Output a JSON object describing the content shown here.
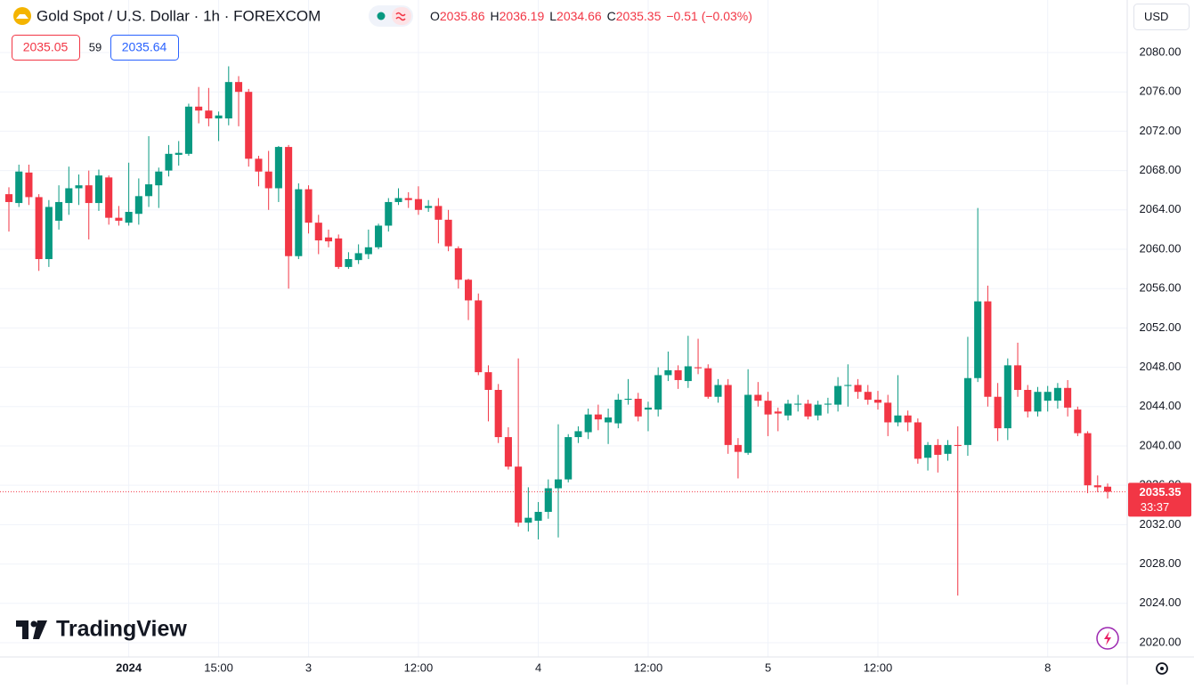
{
  "chart_data": {
    "type": "candlestick",
    "title": "Gold Spot / U.S. Dollar · 1h · FOREXCOM",
    "ohlc_labels": [
      "O",
      "H",
      "L",
      "C"
    ],
    "change": "−0.51 (−0.03%)",
    "bid": 2035.05,
    "spread": 59,
    "ask": 2035.64,
    "currency": "USD",
    "countdown": "33:37",
    "brand": "TradingView",
    "up_color": "#089981",
    "down_color": "#f23645",
    "grid": true,
    "ylim": [
      2018.55,
      2085.34
    ],
    "yticks": [
      {
        "value": 2020,
        "label": "2020.00"
      },
      {
        "value": 2024,
        "label": "2024.00"
      },
      {
        "value": 2028,
        "label": "2028.00"
      },
      {
        "value": 2032,
        "label": "2032.00"
      },
      {
        "value": 2036,
        "label": "2036.00"
      },
      {
        "value": 2040,
        "label": "2040.00"
      },
      {
        "value": 2044,
        "label": "2044.00"
      },
      {
        "value": 2048,
        "label": "2048.00"
      },
      {
        "value": 2052,
        "label": "2052.00"
      },
      {
        "value": 2056,
        "label": "2056.00"
      },
      {
        "value": 2060,
        "label": "2060.00"
      },
      {
        "value": 2064,
        "label": "2064.00"
      },
      {
        "value": 2068,
        "label": "2068.00"
      },
      {
        "value": 2072,
        "label": "2072.00"
      },
      {
        "value": 2076,
        "label": "2076.00"
      },
      {
        "value": 2080,
        "label": "2080.00"
      }
    ],
    "categories": [
      null,
      null,
      null,
      null,
      null,
      null,
      null,
      null,
      null,
      null,
      null,
      null,
      "2024",
      null,
      null,
      null,
      null,
      null,
      null,
      null,
      null,
      "15:00",
      null,
      null,
      null,
      null,
      null,
      null,
      null,
      null,
      "3",
      null,
      null,
      null,
      null,
      null,
      null,
      null,
      null,
      null,
      null,
      "12:00",
      null,
      null,
      null,
      null,
      null,
      null,
      null,
      null,
      null,
      null,
      null,
      "4",
      null,
      null,
      null,
      null,
      null,
      null,
      null,
      null,
      null,
      null,
      "12:00",
      null,
      null,
      null,
      null,
      null,
      null,
      null,
      null,
      null,
      null,
      null,
      "5",
      null,
      null,
      null,
      null,
      null,
      null,
      null,
      null,
      null,
      null,
      "12:00",
      null,
      null,
      null,
      null,
      null,
      null,
      null,
      null,
      null,
      null,
      null,
      null,
      null,
      null,
      null,
      null,
      "8",
      null,
      null,
      null,
      null,
      null,
      null
    ],
    "open": [
      2065.6,
      2064.7,
      2067.8,
      2065.3,
      2059.0,
      2062.9,
      2064.7,
      2066.2,
      2066.5,
      2064.7,
      2067.3,
      2063.2,
      2062.7,
      2063.6,
      2065.4,
      2066.5,
      2068.0,
      2069.6,
      2069.7,
      2074.5,
      2074.1,
      2073.3,
      2073.3,
      2077.0,
      2076.0,
      2069.2,
      2067.9,
      2066.2,
      2070.4,
      2059.3,
      2066.1,
      2062.7,
      2061.2,
      2061.1,
      2058.2,
      2058.9,
      2059.5,
      2060.2,
      2062.4,
      2064.8,
      2065.2,
      2065.1,
      2064.2,
      2064.4,
      2063.0,
      2060.1,
      2056.9,
      2054.8,
      2047.5,
      2045.7,
      2040.9,
      2037.9,
      2032.2,
      2032.4,
      2033.3,
      2035.7,
      2036.6,
      2040.9,
      2041.4,
      2043.2,
      2042.4,
      2042.3,
      2044.7,
      2044.8,
      2043.7,
      2043.7,
      2047.2,
      2047.7,
      2046.6,
      2048.0,
      2047.9,
      2045.0,
      2046.2,
      2040.1,
      2039.3,
      2045.2,
      2044.6,
      2043.5,
      2043.1,
      2044.2,
      2044.3,
      2043.1,
      2044.2,
      2044.2,
      2046.1,
      2046.2,
      2045.5,
      2044.7,
      2044.4,
      2042.4,
      2043.1,
      2042.4,
      2038.8,
      2040.1,
      2039.2,
      2040.1,
      2040.1,
      2046.9,
      2054.7,
      2045.0,
      2041.8,
      2048.2,
      2045.7,
      2043.5,
      2044.6,
      2044.6,
      2045.9,
      2043.7,
      2041.3,
      2036.0,
      2035.86
    ],
    "high": [
      2066.3,
      2068.6,
      2068.6,
      2065.6,
      2065.0,
      2066.5,
      2068.4,
      2067.6,
      2068.0,
      2068.1,
      2067.5,
      2064.4,
      2068.8,
      2067.2,
      2071.5,
      2068.3,
      2070.6,
      2071.0,
      2074.8,
      2076.5,
      2076.4,
      2074.0,
      2078.6,
      2077.6,
      2076.3,
      2069.5,
      2070.0,
      2070.5,
      2070.6,
      2066.7,
      2066.5,
      2063.5,
      2062.0,
      2061.5,
      2059.7,
      2060.5,
      2062.0,
      2062.6,
      2065.2,
      2066.2,
      2065.8,
      2066.4,
      2065.0,
      2065.2,
      2064.0,
      2060.3,
      2057.0,
      2055.5,
      2048.2,
      2046.3,
      2041.9,
      2048.9,
      2035.8,
      2034.3,
      2036.6,
      2042.2,
      2041.2,
      2042.0,
      2043.8,
      2044.2,
      2043.8,
      2045.3,
      2046.8,
      2045.4,
      2044.5,
      2048.0,
      2049.6,
      2048.2,
      2051.2,
      2050.9,
      2048.3,
      2046.8,
      2046.8,
      2040.8,
      2047.8,
      2046.5,
      2045.5,
      2043.9,
      2044.7,
      2045.2,
      2044.7,
      2044.6,
      2044.9,
      2047.0,
      2048.3,
      2046.8,
      2046.2,
      2045.6,
      2045.2,
      2047.2,
      2043.6,
      2042.8,
      2040.4,
      2040.7,
      2040.6,
      2042.0,
      2051.1,
      2064.2,
      2056.3,
      2046.4,
      2048.9,
      2050.5,
      2046.2,
      2046.0,
      2046.1,
      2046.4,
      2046.7,
      2044.0,
      2041.5,
      2037.0,
      2036.19
    ],
    "low": [
      2061.8,
      2064.3,
      2064.5,
      2057.8,
      2058.2,
      2062.0,
      2063.5,
      2064.5,
      2061.0,
      2063.9,
      2062.5,
      2062.4,
      2062.4,
      2062.5,
      2064.3,
      2064.2,
      2067.4,
      2068.5,
      2069.5,
      2072.8,
      2072.5,
      2071.0,
      2072.6,
      2072.5,
      2068.4,
      2066.4,
      2064.0,
      2064.8,
      2056.0,
      2059.0,
      2061.6,
      2059.5,
      2060.2,
      2058.0,
      2058.0,
      2058.5,
      2059.0,
      2060.0,
      2061.8,
      2064.5,
      2064.2,
      2063.5,
      2063.8,
      2060.6,
      2059.8,
      2056.0,
      2052.8,
      2047.2,
      2042.5,
      2040.3,
      2037.6,
      2031.8,
      2031.3,
      2030.5,
      2032.6,
      2030.7,
      2036.3,
      2040.3,
      2040.7,
      2041.6,
      2040.2,
      2041.8,
      2044.2,
      2042.5,
      2041.5,
      2043.0,
      2046.6,
      2045.8,
      2045.9,
      2047.3,
      2044.8,
      2044.4,
      2039.2,
      2036.7,
      2039.1,
      2044.0,
      2041.0,
      2041.5,
      2042.6,
      2043.5,
      2042.7,
      2042.6,
      2043.3,
      2043.5,
      2044.0,
      2044.8,
      2044.2,
      2043.7,
      2041.0,
      2042.0,
      2041.5,
      2038.2,
      2037.5,
      2037.3,
      2038.5,
      2024.8,
      2039.0,
      2046.5,
      2044.0,
      2040.5,
      2040.6,
      2045.0,
      2042.9,
      2043.0,
      2043.5,
      2043.8,
      2043.0,
      2041.0,
      2035.2,
      2035.3,
      2034.66
    ],
    "close": [
      2064.8,
      2067.9,
      2065.3,
      2059.0,
      2064.3,
      2064.8,
      2066.2,
      2066.5,
      2064.7,
      2067.5,
      2063.2,
      2062.9,
      2063.8,
      2065.4,
      2066.6,
      2067.9,
      2069.7,
      2069.8,
      2074.5,
      2074.1,
      2073.3,
      2073.6,
      2077.0,
      2076.0,
      2069.2,
      2067.9,
      2066.2,
      2070.4,
      2059.3,
      2066.1,
      2062.7,
      2060.9,
      2060.8,
      2058.2,
      2059.0,
      2059.6,
      2060.2,
      2062.4,
      2064.8,
      2065.2,
      2065.0,
      2064.0,
      2064.4,
      2063.0,
      2060.3,
      2056.9,
      2054.8,
      2047.5,
      2045.7,
      2040.9,
      2037.9,
      2032.2,
      2032.7,
      2033.3,
      2035.7,
      2036.6,
      2040.9,
      2041.5,
      2043.2,
      2042.7,
      2042.9,
      2044.7,
      2044.8,
      2043.0,
      2043.9,
      2047.2,
      2047.7,
      2046.7,
      2048.1,
      2047.9,
      2045.0,
      2046.2,
      2040.1,
      2039.4,
      2045.2,
      2044.6,
      2043.2,
      2043.3,
      2044.3,
      2044.3,
      2043.0,
      2044.2,
      2044.3,
      2046.1,
      2046.2,
      2045.5,
      2044.7,
      2044.4,
      2042.4,
      2043.1,
      2042.4,
      2038.7,
      2040.1,
      2039.1,
      2040.1,
      2040.0,
      2046.9,
      2054.7,
      2045.0,
      2041.8,
      2048.2,
      2045.7,
      2043.5,
      2045.5,
      2045.5,
      2045.9,
      2043.9,
      2041.3,
      2036.0,
      2035.8,
      2035.35
    ]
  }
}
